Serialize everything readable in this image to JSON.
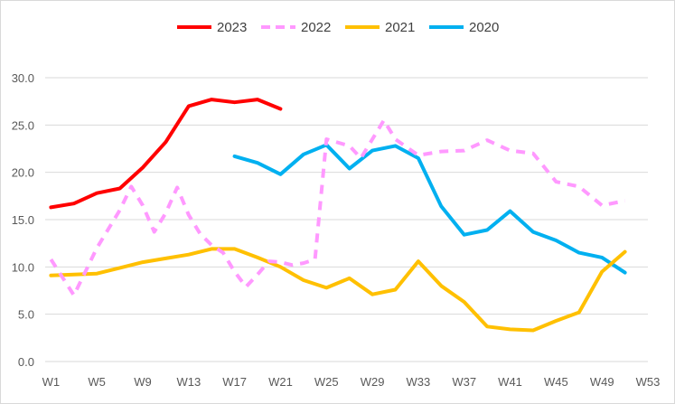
{
  "chart_data": {
    "type": "line",
    "x": [
      "W1",
      "W2",
      "W3",
      "W4",
      "W5",
      "W6",
      "W7",
      "W8",
      "W9",
      "W10",
      "W11",
      "W12",
      "W13",
      "W14",
      "W15",
      "W16",
      "W17",
      "W18",
      "W19",
      "W20",
      "W21",
      "W22",
      "W23",
      "W24",
      "W25",
      "W26",
      "W27",
      "W28",
      "W29",
      "W30",
      "W31",
      "W32",
      "W33",
      "W34",
      "W35",
      "W36",
      "W37",
      "W38",
      "W39",
      "W40",
      "W41",
      "W42",
      "W43",
      "W44",
      "W45",
      "W46",
      "W47",
      "W48",
      "W49",
      "W50",
      "W51",
      "W52",
      "W53"
    ],
    "x_tick_labels": [
      "W1",
      "W5",
      "W9",
      "W13",
      "W17",
      "W21",
      "W25",
      "W29",
      "W33",
      "W37",
      "W41",
      "W45",
      "W49",
      "W53"
    ],
    "y_tick_labels": [
      "0.0",
      "5.0",
      "10.0",
      "15.0",
      "20.0",
      "25.0",
      "30.0"
    ],
    "ylim": [
      0,
      30
    ],
    "grid": true,
    "legend_position": "top",
    "series": [
      {
        "name": "2023",
        "color": "#ff0000",
        "dash": "solid",
        "points": [
          [
            1,
            16.3
          ],
          [
            3,
            16.7
          ],
          [
            5,
            17.8
          ],
          [
            7,
            18.3
          ],
          [
            9,
            20.5
          ],
          [
            11,
            23.2
          ],
          [
            13,
            27.0
          ],
          [
            15,
            27.7
          ],
          [
            17,
            27.4
          ],
          [
            19,
            27.7
          ],
          [
            21,
            26.7
          ]
        ]
      },
      {
        "name": "2022",
        "color": "#ff99ff",
        "dash": "dashed",
        "points": [
          [
            1,
            10.8
          ],
          [
            3,
            7.0
          ],
          [
            5,
            12.0
          ],
          [
            7,
            16.0
          ],
          [
            8,
            18.5
          ],
          [
            9,
            16.5
          ],
          [
            10,
            13.7
          ],
          [
            11,
            15.7
          ],
          [
            12,
            18.4
          ],
          [
            13,
            15.5
          ],
          [
            14,
            13.5
          ],
          [
            15,
            12.3
          ],
          [
            16,
            11.5
          ],
          [
            17,
            9.5
          ],
          [
            18,
            7.9
          ],
          [
            19,
            9.2
          ],
          [
            20,
            10.6
          ],
          [
            21,
            10.5
          ],
          [
            22,
            10.2
          ],
          [
            23,
            10.4
          ],
          [
            24,
            10.8
          ],
          [
            25,
            23.5
          ],
          [
            27,
            22.8
          ],
          [
            28,
            21.5
          ],
          [
            29,
            23.5
          ],
          [
            30,
            25.5
          ],
          [
            31,
            23.5
          ],
          [
            33,
            21.8
          ],
          [
            35,
            22.2
          ],
          [
            37,
            22.3
          ],
          [
            39,
            23.4
          ],
          [
            41,
            22.3
          ],
          [
            43,
            22.0
          ],
          [
            45,
            19.0
          ],
          [
            47,
            18.5
          ],
          [
            49,
            16.5
          ],
          [
            51,
            17.0
          ]
        ]
      },
      {
        "name": "2021",
        "color": "#ffc000",
        "dash": "solid",
        "points": [
          [
            1,
            9.1
          ],
          [
            3,
            9.2
          ],
          [
            5,
            9.3
          ],
          [
            7,
            9.9
          ],
          [
            9,
            10.5
          ],
          [
            11,
            10.9
          ],
          [
            13,
            11.3
          ],
          [
            15,
            11.9
          ],
          [
            17,
            11.9
          ],
          [
            19,
            11.0
          ],
          [
            21,
            10.0
          ],
          [
            23,
            8.6
          ],
          [
            25,
            7.8
          ],
          [
            27,
            8.8
          ],
          [
            29,
            7.1
          ],
          [
            31,
            7.6
          ],
          [
            33,
            10.6
          ],
          [
            35,
            8.0
          ],
          [
            37,
            6.3
          ],
          [
            39,
            3.7
          ],
          [
            41,
            3.4
          ],
          [
            43,
            3.3
          ],
          [
            45,
            4.3
          ],
          [
            47,
            5.2
          ],
          [
            49,
            9.5
          ],
          [
            51,
            11.6
          ]
        ]
      },
      {
        "name": "2020",
        "color": "#00b0f0",
        "dash": "solid",
        "points": [
          [
            17,
            21.7
          ],
          [
            19,
            21.0
          ],
          [
            21,
            19.8
          ],
          [
            23,
            21.9
          ],
          [
            25,
            22.9
          ],
          [
            27,
            20.4
          ],
          [
            29,
            22.3
          ],
          [
            31,
            22.8
          ],
          [
            33,
            21.5
          ],
          [
            35,
            16.4
          ],
          [
            37,
            13.4
          ],
          [
            39,
            13.9
          ],
          [
            41,
            15.9
          ],
          [
            43,
            13.7
          ],
          [
            45,
            12.8
          ],
          [
            47,
            11.5
          ],
          [
            49,
            11.0
          ],
          [
            51,
            9.4
          ]
        ]
      }
    ],
    "legend": [
      {
        "name": "2023",
        "color": "#ff0000",
        "dash": "solid"
      },
      {
        "name": "2022",
        "color": "#ff99ff",
        "dash": "dashed"
      },
      {
        "name": "2021",
        "color": "#ffc000",
        "dash": "solid"
      },
      {
        "name": "2020",
        "color": "#00b0f0",
        "dash": "solid"
      }
    ],
    "title": "",
    "xlabel": "",
    "ylabel": ""
  }
}
